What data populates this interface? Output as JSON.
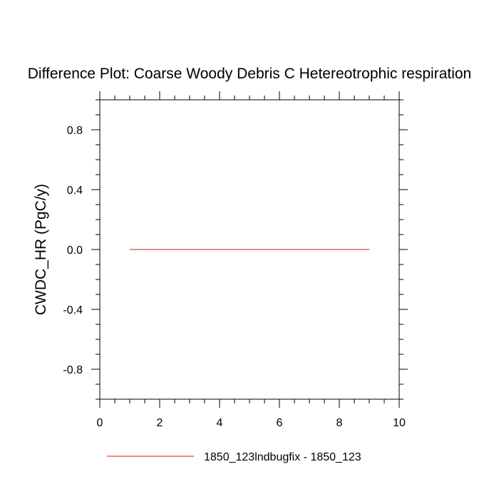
{
  "chart_data": {
    "type": "line",
    "title": "Difference Plot: Coarse Woody Debris C Hetereotrophic respiration",
    "xlabel": "",
    "ylabel": "CWDC_HR  (PgC/y)",
    "xlim": [
      0,
      10
    ],
    "ylim": [
      -1,
      1
    ],
    "x_ticks": [
      0,
      2,
      4,
      6,
      8,
      10
    ],
    "x_tick_labels": [
      "0",
      "2",
      "4",
      "6",
      "8",
      "10"
    ],
    "y_ticks": [
      -0.8,
      -0.4,
      0.0,
      0.4,
      0.8
    ],
    "y_tick_labels": [
      "-0.8",
      "-0.4",
      "0.0",
      "0.4",
      "0.8"
    ],
    "grid": false,
    "legend_position": "bottom",
    "series": [
      {
        "name": "1850_123lndbugfix - 1850_123",
        "color": "#e06666",
        "x": [
          1,
          2,
          3,
          4,
          5,
          6,
          7,
          8,
          9
        ],
        "y": [
          0,
          0,
          0,
          0,
          0,
          0,
          0,
          0,
          0
        ]
      }
    ]
  }
}
